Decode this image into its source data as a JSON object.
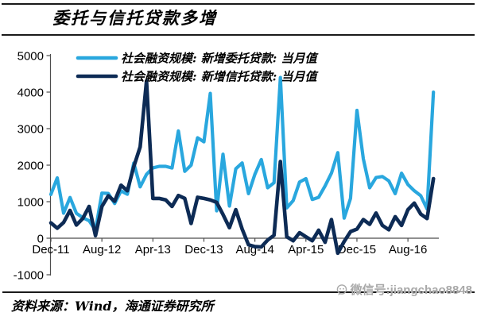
{
  "header": {
    "title": "委托与信托贷款多增"
  },
  "footer": {
    "source": "资料来源：Wind，海通证券研究所",
    "watermark": "微信号:jiangchao8848",
    "watermark_icon": "wechat-icon"
  },
  "colors": {
    "entrusted_line": "#29A7DE",
    "trust_line": "#0D2B55",
    "axis": "#4d4d4d",
    "text": "#000000",
    "rule": "#1a1a1a",
    "watermark": "#a9a9a9"
  },
  "chart_data": {
    "type": "line",
    "title": "委托与信托贷款多增",
    "xlabel": "",
    "ylabel": "",
    "grid": false,
    "legend_position": "top-left-inside",
    "ylim": [
      -1000,
      5000
    ],
    "y_ticks": [
      -1000,
      0,
      1000,
      2000,
      3000,
      4000,
      5000
    ],
    "x_tick_labels": [
      "Dec-11",
      "Aug-12",
      "Apr-13",
      "Dec-13",
      "Aug-14",
      "Apr-15",
      "Dec-15",
      "Aug-16"
    ],
    "x_tick_indices": [
      0,
      8,
      16,
      24,
      32,
      40,
      48,
      56
    ],
    "x": [
      "Dec-11",
      "Jan-12",
      "Feb-12",
      "Mar-12",
      "Apr-12",
      "May-12",
      "Jun-12",
      "Jul-12",
      "Aug-12",
      "Sep-12",
      "Oct-12",
      "Nov-12",
      "Dec-12",
      "Jan-13",
      "Feb-13",
      "Mar-13",
      "Apr-13",
      "May-13",
      "Jun-13",
      "Jul-13",
      "Aug-13",
      "Sep-13",
      "Oct-13",
      "Nov-13",
      "Dec-13",
      "Jan-14",
      "Feb-14",
      "Mar-14",
      "Apr-14",
      "May-14",
      "Jun-14",
      "Jul-14",
      "Aug-14",
      "Sep-14",
      "Oct-14",
      "Nov-14",
      "Dec-14",
      "Jan-15",
      "Feb-15",
      "Mar-15",
      "Apr-15",
      "May-15",
      "Jun-15",
      "Jul-15",
      "Aug-15",
      "Sep-15",
      "Oct-15",
      "Nov-15",
      "Dec-15",
      "Jan-16",
      "Feb-16",
      "Mar-16",
      "Apr-16",
      "May-16",
      "Jun-16",
      "Jul-16",
      "Aug-16",
      "Sep-16",
      "Oct-16",
      "Nov-16",
      "Dec-16"
    ],
    "series": [
      {
        "name": "社会融资规模: 新增委托贷款: 当月值",
        "color": "#29A7DE",
        "values": [
          1198,
          1653,
          685,
          1115,
          683,
          563,
          479,
          217,
          1235,
          1227,
          950,
          1296,
          1205,
          2061,
          1406,
          1748,
          1926,
          1967,
          1968,
          1922,
          2938,
          1830,
          2000,
          2750,
          2640,
          3965,
          750,
          2300,
          880,
          1900,
          2060,
          1220,
          1750,
          2155,
          1380,
          1520,
          4400,
          830,
          1030,
          1540,
          1630,
          1060,
          1120,
          1430,
          1780,
          2344,
          550,
          1090,
          3500,
          2175,
          1380,
          1660,
          1690,
          1570,
          1220,
          1780,
          1470,
          1300,
          1165,
          800,
          4000
        ]
      },
      {
        "name": "社会融资规模: 新增信托贷款: 当月值",
        "color": "#0D2B55",
        "values": [
          420,
          275,
          430,
          760,
          360,
          540,
          870,
          70,
          870,
          1160,
          1010,
          1450,
          1300,
          1960,
          2500,
          4306,
          1090,
          1090,
          1050,
          870,
          1170,
          1090,
          404,
          1120,
          1090,
          1050,
          980,
          650,
          290,
          780,
          250,
          -180,
          -230,
          -240,
          -50,
          80,
          2100,
          40,
          -70,
          150,
          40,
          -70,
          220,
          -110,
          510,
          -410,
          -90,
          180,
          250,
          510,
          380,
          690,
          350,
          230,
          590,
          350,
          780,
          960,
          660,
          540,
          1630
        ]
      }
    ]
  }
}
